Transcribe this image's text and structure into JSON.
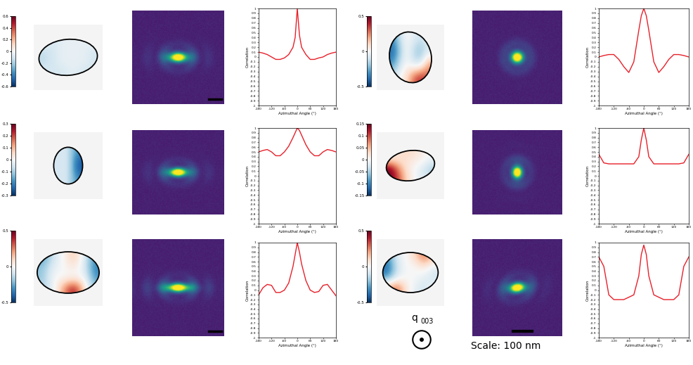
{
  "chart_data": {
    "type": "line",
    "xlabel": "Azimuthal Angle (°)",
    "ylabel": "Correlation",
    "xlim": [
      -180,
      180
    ],
    "xticks": [
      -180,
      -120,
      -60,
      0,
      60,
      120,
      180
    ],
    "ylim": [
      -1,
      1
    ],
    "yticks": [
      -1,
      -0.9,
      -0.8,
      -0.7,
      -0.6,
      -0.5,
      -0.4,
      -0.3,
      -0.2,
      -0.1,
      0,
      0.1,
      0.2,
      0.3,
      0.4,
      0.5,
      0.6,
      0.7,
      0.8,
      0.9,
      1
    ],
    "color": "#e8202a",
    "x": [
      -180,
      -160,
      -140,
      -120,
      -100,
      -80,
      -60,
      -40,
      -20,
      -10,
      0,
      10,
      20,
      40,
      60,
      80,
      100,
      120,
      140,
      160,
      180
    ],
    "q_label": {
      "symbol": "q",
      "subscript": "003"
    },
    "scale_label": "Scale: 100 nm",
    "panels": [
      {
        "colorbar_range": [
          -0.6,
          0.6
        ],
        "colorbar_ticks": [
          -0.6,
          -0.4,
          -0.2,
          0,
          0.2,
          0.4,
          0.6
        ],
        "strain_cells": [
          [
            -0.05,
            -0.1,
            -0.05,
            -0.05,
            -0.05,
            -0.05
          ],
          [
            -0.15,
            -0.1,
            -0.05,
            -0.05,
            -0.05,
            -0.1
          ],
          [
            -0.15,
            -0.1,
            -0.05,
            -0.05,
            -0.05,
            -0.1
          ],
          [
            -0.1,
            -0.1,
            -0.1,
            -0.05,
            -0.1,
            -0.1
          ]
        ],
        "values": [
          0.1,
          0.08,
          0.05,
          0.0,
          -0.05,
          -0.05,
          -0.02,
          0.05,
          0.2,
          0.4,
          1.0,
          0.45,
          0.2,
          0.05,
          -0.05,
          -0.05,
          -0.02,
          0.0,
          0.05,
          0.08,
          0.1
        ]
      },
      {
        "colorbar_range": [
          -0.5,
          0.5
        ],
        "colorbar_ticks": [
          -0.5,
          0,
          0.5
        ],
        "strain_cells": [
          [
            -0.3,
            -0.1,
            0.0,
            -0.05,
            -0.1,
            -0.05
          ],
          [
            -0.4,
            -0.2,
            0.0,
            -0.15,
            -0.2,
            -0.1
          ],
          [
            -0.3,
            -0.1,
            0.0,
            -0.1,
            -0.1,
            0.2
          ],
          [
            -0.1,
            0.0,
            0.1,
            0.3,
            0.4,
            0.3
          ]
        ],
        "values": [
          0.0,
          0.03,
          0.05,
          0.05,
          -0.05,
          -0.2,
          -0.32,
          -0.1,
          0.55,
          0.85,
          1.0,
          0.85,
          0.55,
          -0.1,
          -0.32,
          -0.2,
          -0.05,
          0.05,
          0.05,
          0.03,
          0.0
        ]
      },
      {
        "colorbar_range": [
          -0.3,
          0.3
        ],
        "colorbar_ticks": [
          -0.3,
          -0.2,
          -0.1,
          0,
          0.1,
          0.2,
          0.3
        ],
        "strain_cells": [
          [
            -0.05,
            -0.05,
            -0.05,
            -0.1,
            -0.15,
            -0.2
          ],
          [
            -0.05,
            -0.05,
            -0.05,
            -0.1,
            -0.2,
            -0.25
          ],
          [
            -0.05,
            -0.05,
            -0.05,
            -0.1,
            -0.2,
            -0.25
          ],
          [
            -0.05,
            -0.05,
            -0.05,
            -0.1,
            -0.15,
            -0.2
          ]
        ],
        "values": [
          0.5,
          0.53,
          0.55,
          0.5,
          0.42,
          0.42,
          0.5,
          0.62,
          0.8,
          0.9,
          1.0,
          0.95,
          0.85,
          0.65,
          0.5,
          0.42,
          0.42,
          0.5,
          0.55,
          0.53,
          0.5
        ]
      },
      {
        "colorbar_range": [
          -0.15,
          0.15
        ],
        "colorbar_ticks": [
          -0.15,
          -0.1,
          -0.05,
          0,
          0.05,
          0.1,
          0.15
        ],
        "strain_cells": [
          [
            0.0,
            0.02,
            0.03,
            0.02,
            0.01,
            0.0
          ],
          [
            0.05,
            0.03,
            0.02,
            0.01,
            0.0,
            -0.02
          ],
          [
            0.15,
            0.08,
            0.02,
            0.0,
            -0.02,
            -0.05
          ],
          [
            0.15,
            0.1,
            0.03,
            0.0,
            -0.02,
            -0.03
          ]
        ],
        "values": [
          0.45,
          0.27,
          0.25,
          0.25,
          0.25,
          0.25,
          0.25,
          0.25,
          0.4,
          0.75,
          1.0,
          0.75,
          0.4,
          0.25,
          0.25,
          0.25,
          0.25,
          0.25,
          0.25,
          0.27,
          0.45
        ]
      },
      {
        "colorbar_range": [
          -0.5,
          0.5
        ],
        "colorbar_ticks": [
          -0.5,
          0,
          0.5
        ],
        "strain_cells": [
          [
            -0.3,
            -0.1,
            0.0,
            0.15,
            -0.05,
            -0.3
          ],
          [
            -0.2,
            -0.05,
            0.0,
            0.05,
            -0.05,
            -0.35
          ],
          [
            -0.2,
            0.0,
            0.0,
            0.0,
            0.0,
            -0.3
          ],
          [
            -0.15,
            -0.05,
            0.2,
            0.45,
            0.1,
            -0.2
          ]
        ],
        "values": [
          -0.1,
          0.05,
          0.12,
          0.1,
          -0.05,
          -0.05,
          0.0,
          0.15,
          0.5,
          0.75,
          1.0,
          0.8,
          0.55,
          0.2,
          0.0,
          -0.05,
          -0.03,
          0.1,
          0.12,
          0.0,
          -0.12
        ]
      },
      {
        "colorbar_range": [
          -0.5,
          0.5
        ],
        "colorbar_ticks": [
          -0.5,
          0,
          0.5
        ],
        "strain_cells": [
          [
            -0.3,
            -0.05,
            0.0,
            0.1,
            0.3,
            0.1
          ],
          [
            -0.4,
            -0.1,
            0.0,
            0.0,
            0.05,
            -0.05
          ],
          [
            -0.3,
            -0.05,
            0.0,
            0.0,
            -0.05,
            -0.1
          ],
          [
            0.2,
            0.3,
            0.05,
            -0.05,
            -0.1,
            0.0
          ]
        ],
        "values": [
          0.7,
          0.5,
          -0.1,
          -0.2,
          -0.2,
          -0.2,
          -0.15,
          -0.1,
          0.3,
          0.75,
          0.95,
          0.75,
          0.3,
          -0.1,
          -0.15,
          -0.2,
          -0.2,
          -0.2,
          -0.1,
          0.5,
          0.7
        ]
      }
    ]
  }
}
